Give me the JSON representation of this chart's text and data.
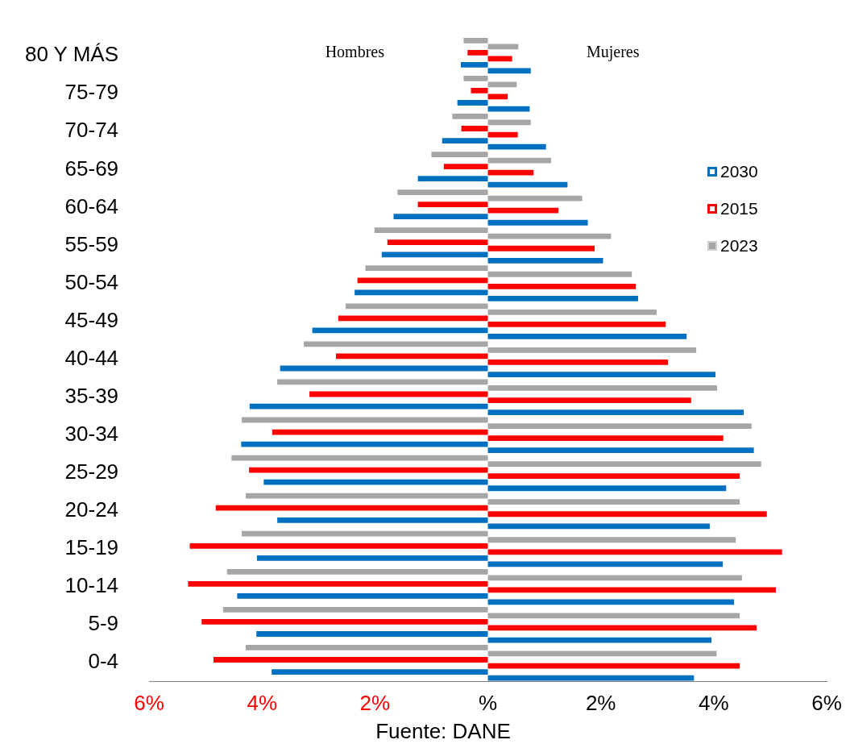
{
  "chart_data": {
    "type": "bar",
    "orientation": "horizontal",
    "categories": [
      "80 Y MÁS",
      "75-79",
      "70-74",
      "65-69",
      "60-64",
      "55-59",
      "50-54",
      "45-49",
      "40-44",
      "35-39",
      "30-34",
      "25-29",
      "20-24",
      "15-19",
      "10-14",
      "5-9",
      "0-4"
    ],
    "series": [
      {
        "color": "#a6a6a6",
        "values": [
          -0.43,
          -0.43,
          -0.63,
          -1.0,
          -1.6,
          -2.01,
          -2.17,
          -2.52,
          -3.26,
          -3.73,
          -4.36,
          -4.54,
          -4.29,
          -4.36,
          -4.62,
          -4.69,
          -4.29
        ]
      },
      {
        "name": "2023",
        "color": "#a6a6a6",
        "values": [
          0.54,
          0.51,
          0.76,
          1.12,
          1.67,
          2.18,
          2.55,
          2.99,
          3.69,
          4.06,
          4.67,
          4.84,
          4.46,
          4.39,
          4.5,
          4.46,
          4.05
        ]
      },
      {
        "color": "#ff0000",
        "values": [
          -0.36,
          -0.3,
          -0.47,
          -0.78,
          -1.24,
          -1.78,
          -2.31,
          -2.65,
          -2.69,
          -3.16,
          -3.82,
          -4.23,
          -4.82,
          -5.28,
          -5.31,
          -5.07,
          -4.86
        ]
      },
      {
        "name": "2015",
        "color": "#ff0000",
        "values": [
          0.43,
          0.35,
          0.53,
          0.81,
          1.25,
          1.89,
          2.62,
          3.15,
          3.19,
          3.6,
          4.17,
          4.46,
          4.94,
          5.21,
          5.1,
          4.76,
          4.46
        ]
      },
      {
        "color": "#0070c0",
        "values": [
          -0.48,
          -0.54,
          -0.81,
          -1.24,
          -1.67,
          -1.88,
          -2.36,
          -3.11,
          -3.68,
          -4.22,
          -4.37,
          -3.97,
          -3.73,
          -4.09,
          -4.44,
          -4.1,
          -3.83
        ]
      },
      {
        "name": "2030",
        "color": "#0070c0",
        "values": [
          0.76,
          0.74,
          1.03,
          1.41,
          1.77,
          2.04,
          2.66,
          3.52,
          4.03,
          4.53,
          4.71,
          4.22,
          3.93,
          4.16,
          4.36,
          3.96,
          3.65
        ]
      }
    ],
    "xlim": [
      -6,
      6
    ],
    "xticks": [
      {
        "value": -6,
        "label": "6%"
      },
      {
        "value": -4,
        "label": "4%"
      },
      {
        "value": -2,
        "label": "2%"
      },
      {
        "value": 0,
        "label": "%"
      },
      {
        "value": 2,
        "label": "2%"
      },
      {
        "value": 4,
        "label": "4%"
      },
      {
        "value": 6,
        "label": "6%"
      }
    ],
    "legend": "right",
    "grid": false,
    "annotations": [
      "Hombres",
      "Mujeres",
      "Fuente: DANE"
    ]
  }
}
